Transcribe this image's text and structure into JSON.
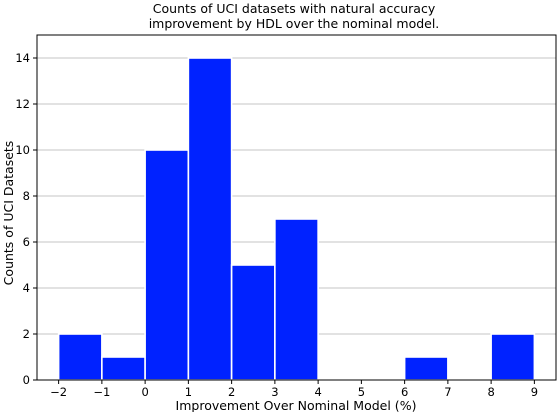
{
  "chart_data": {
    "type": "bar",
    "title": [
      "Counts of UCI datasets with natural accuracy",
      "improvement by HDL over the nominal model."
    ],
    "xlabel": "Improvement Over Nominal Model (%)",
    "ylabel": "Counts of UCI Datasets",
    "xlim": [
      -2.5,
      9.5
    ],
    "ylim": [
      0,
      15
    ],
    "xticks": [
      -2,
      -1,
      0,
      1,
      2,
      3,
      4,
      5,
      6,
      7,
      8,
      9
    ],
    "xtick_labels": [
      "−2",
      "−1",
      "0",
      "1",
      "2",
      "3",
      "4",
      "5",
      "6",
      "7",
      "8",
      "9"
    ],
    "yticks": [
      0,
      2,
      4,
      6,
      8,
      10,
      12,
      14
    ],
    "ytick_labels": [
      "0",
      "2",
      "4",
      "6",
      "8",
      "10",
      "12",
      "14"
    ],
    "grid": "horizontal",
    "color": "#0022ff",
    "bins": [
      {
        "x0": -2,
        "x1": -1,
        "count": 2
      },
      {
        "x0": -1,
        "x1": 0,
        "count": 1
      },
      {
        "x0": 0,
        "x1": 1,
        "count": 10
      },
      {
        "x0": 1,
        "x1": 2,
        "count": 14
      },
      {
        "x0": 2,
        "x1": 3,
        "count": 5
      },
      {
        "x0": 3,
        "x1": 4,
        "count": 7
      },
      {
        "x0": 6,
        "x1": 7,
        "count": 1
      },
      {
        "x0": 8,
        "x1": 9,
        "count": 2
      }
    ]
  }
}
